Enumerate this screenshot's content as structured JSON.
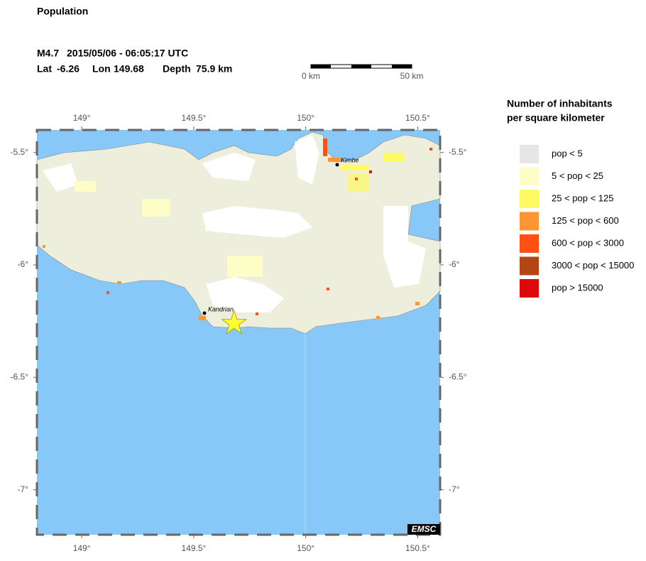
{
  "header": {
    "title": "Population"
  },
  "event": {
    "magnitude": "M4.7",
    "datetime": "2015/05/06 - 06:05:17 UTC",
    "lat_label": "Lat",
    "lat": -6.26,
    "lon_label": "Lon",
    "lon": 149.68,
    "depth_label": "Depth",
    "depth": "75.9 km"
  },
  "scale_bar": {
    "start": "0 km",
    "end": "50 km"
  },
  "map": {
    "xlim": [
      148.8,
      150.6
    ],
    "ylim": [
      -7.2,
      -5.4
    ],
    "xticks": [
      {
        "value": 149,
        "label": "149°"
      },
      {
        "value": 149.5,
        "label": "149.5°"
      },
      {
        "value": 150,
        "label": "150°"
      },
      {
        "value": 150.5,
        "label": "150.5°"
      }
    ],
    "yticks": [
      {
        "value": -5.5,
        "label": "-5.5°"
      },
      {
        "value": -6,
        "label": "-6°"
      },
      {
        "value": -6.5,
        "label": "-6.5°"
      },
      {
        "value": -7,
        "label": "-7°"
      }
    ],
    "cities": [
      "Kimbe",
      "Kandrian"
    ],
    "credit": "EMSC"
  },
  "legend": {
    "title": [
      "Number of inhabitants",
      "per square kilometer"
    ],
    "items": [
      {
        "label": "pop < 5",
        "color": "#e6e6e6"
      },
      {
        "label": "5 < pop < 25",
        "color": "#fdfdc8"
      },
      {
        "label": "25 < pop < 125",
        "color": "#fdfa64"
      },
      {
        "label": "125 < pop < 600",
        "color": "#fd9632"
      },
      {
        "label": "600 < pop < 3000",
        "color": "#fd5014"
      },
      {
        "label": "3000 < pop < 15000",
        "color": "#b44614"
      },
      {
        "label": "pop > 15000",
        "color": "#dc0a0a"
      }
    ]
  }
}
